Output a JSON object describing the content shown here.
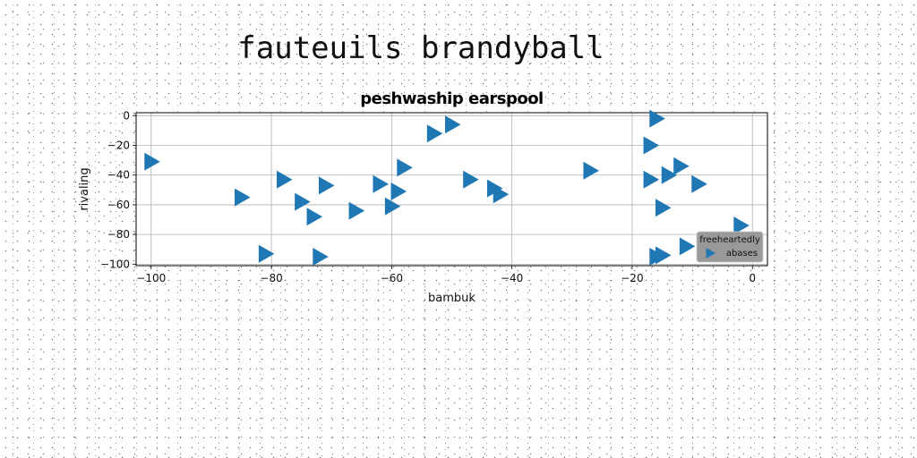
{
  "page_title": "fauteuils brandyball",
  "chart_data": {
    "type": "scatter",
    "title": "peshwaship earspool",
    "xlabel": "bambuk",
    "ylabel": "rivaling",
    "xlim": [
      -102.5,
      2.5
    ],
    "ylim": [
      -101,
      2
    ],
    "xticks": [
      -100,
      -80,
      -60,
      -40,
      -20,
      0
    ],
    "yticks": [
      0,
      -20,
      -40,
      -60,
      -80,
      -100
    ],
    "xtick_labels": [
      "−100",
      "−80",
      "−60",
      "−40",
      "−20",
      "0"
    ],
    "ytick_labels": [
      "0",
      "−20",
      "−40",
      "−60",
      "−80",
      "−100"
    ],
    "grid": true,
    "legend": {
      "title": "freeheartedly",
      "entries": [
        "abases"
      ],
      "placement": "lower-right",
      "background": "#999999"
    },
    "marker": "triangle-right",
    "series": [
      {
        "name": "abases",
        "color": "#1f77b4",
        "points": [
          [
            -100,
            -31
          ],
          [
            -85,
            -55
          ],
          [
            -81,
            -93
          ],
          [
            -78,
            -43
          ],
          [
            -75,
            -58
          ],
          [
            -73,
            -68
          ],
          [
            -72,
            -95
          ],
          [
            -71,
            -47
          ],
          [
            -66,
            -64
          ],
          [
            -62,
            -46
          ],
          [
            -60,
            -61
          ],
          [
            -59,
            -51
          ],
          [
            -58,
            -35
          ],
          [
            -53,
            -12
          ],
          [
            -50,
            -6
          ],
          [
            -47,
            -43
          ],
          [
            -43,
            -49
          ],
          [
            -42,
            -53
          ],
          [
            -27,
            -37
          ],
          [
            -17,
            -20
          ],
          [
            -17,
            -43
          ],
          [
            -16,
            -2
          ],
          [
            -16,
            -95
          ],
          [
            -15,
            -62
          ],
          [
            -15,
            -94
          ],
          [
            -14,
            -40
          ],
          [
            -12,
            -34
          ],
          [
            -11,
            -88
          ],
          [
            -9,
            -46
          ],
          [
            -2,
            -74
          ]
        ]
      }
    ]
  }
}
